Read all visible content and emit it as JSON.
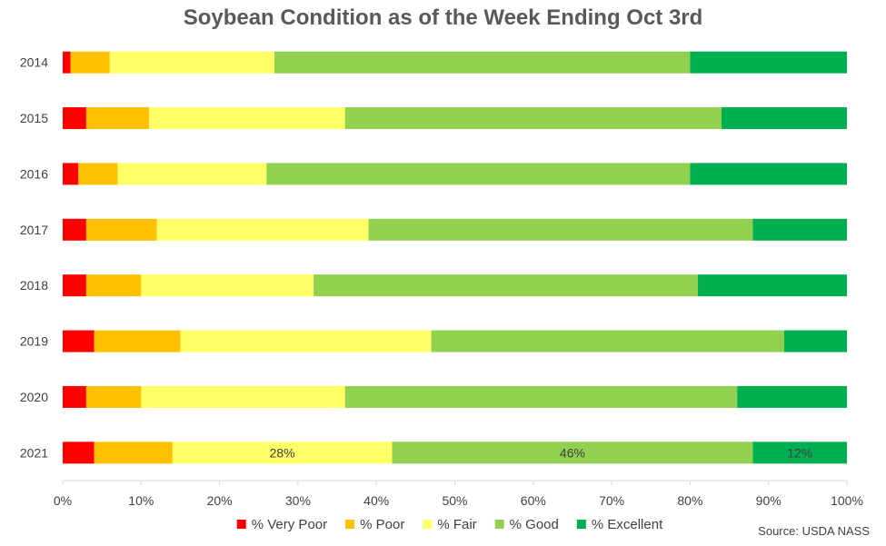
{
  "chart_data": {
    "type": "bar",
    "orientation": "horizontal",
    "stacked": true,
    "title": "Soybean Condition as of the Week Ending Oct 3rd",
    "categories": [
      "2014",
      "2015",
      "2016",
      "2017",
      "2018",
      "2019",
      "2020",
      "2021"
    ],
    "series": [
      {
        "name": "% Very Poor",
        "color": "#ff0000",
        "values": [
          1,
          3,
          2,
          3,
          3,
          4,
          3,
          4
        ]
      },
      {
        "name": "% Poor",
        "color": "#ffc000",
        "values": [
          5,
          8,
          5,
          9,
          7,
          11,
          7,
          10
        ]
      },
      {
        "name": "% Fair",
        "color": "#ffff66",
        "values": [
          21,
          25,
          19,
          27,
          22,
          32,
          26,
          28
        ]
      },
      {
        "name": "% Good",
        "color": "#92d050",
        "values": [
          53,
          48,
          54,
          49,
          49,
          45,
          50,
          46
        ]
      },
      {
        "name": "% Excellent",
        "color": "#00b050",
        "values": [
          20,
          16,
          20,
          12,
          19,
          8,
          14,
          12
        ]
      }
    ],
    "data_labels": [
      {
        "category": "2021",
        "series": "% Fair",
        "text": "28%"
      },
      {
        "category": "2021",
        "series": "% Good",
        "text": "46%"
      },
      {
        "category": "2021",
        "series": "% Excellent",
        "text": "12%"
      }
    ],
    "x_ticks": [
      "0%",
      "10%",
      "20%",
      "30%",
      "40%",
      "50%",
      "60%",
      "70%",
      "80%",
      "90%",
      "100%"
    ],
    "xlim": [
      0,
      100
    ],
    "grid": false,
    "legend_position": "bottom"
  },
  "source": "Source: USDA NASS"
}
